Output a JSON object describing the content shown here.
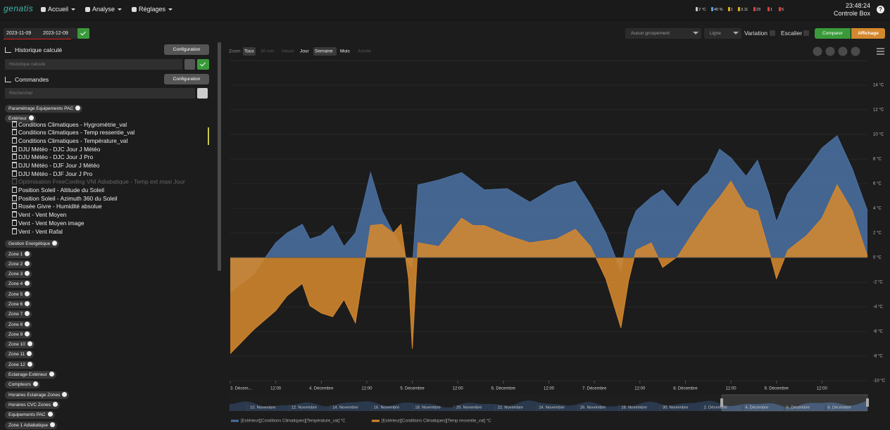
{
  "navbar": {
    "logo": "genatis",
    "menu": [
      "Accueil",
      "Analyse",
      "Réglages"
    ],
    "status": [
      "2 °C",
      "40 %",
      "1",
      "3.11",
      "23",
      "1",
      "5"
    ],
    "time": "23:48:24",
    "box": "Controle Box",
    "help": "?"
  },
  "toolbar": {
    "date_from": "2023-11-09",
    "date_to": "2023-12-09",
    "grouping": "Aucun groupement",
    "mode": "Ligne",
    "variation": "Variation",
    "stairs": "Escalier",
    "compare": "Comparer",
    "display": "Affichage"
  },
  "sidebar": {
    "history": {
      "title": "Historique calculé",
      "button": "Configuration",
      "placeholder": "Historique calculé"
    },
    "commands": {
      "title": "Commandes",
      "button": "Configuration",
      "placeholder": "Rechercher"
    },
    "tree": [
      {
        "label": "Paramétrage Equipements PAC"
      },
      {
        "label": "Extérieur",
        "items": [
          {
            "text": "Conditions Climatiques - Hygrométrie_val",
            "enabled": true
          },
          {
            "text": "Conditions Climatiques - Temp ressentie_val",
            "enabled": true
          },
          {
            "text": "Conditions Climatiques - Température_val",
            "enabled": true
          },
          {
            "text": "DJU Météo - DJC Jour J Météo",
            "enabled": true
          },
          {
            "text": "DJU Météo - DJC Jour J Pro",
            "enabled": true
          },
          {
            "text": "DJU Météo - DJF Jour J Météo",
            "enabled": true
          },
          {
            "text": "DJU Météo - DJF Jour J Pro",
            "enabled": true
          },
          {
            "text": "Optimisation FreeCooling VNI Adiabatique - Temp ext maxi Jour",
            "enabled": false
          },
          {
            "text": "Position Soleil - Altitude du Soleil",
            "enabled": true
          },
          {
            "text": "Position Soleil - Azimuth 360 du Soleil",
            "enabled": true
          },
          {
            "text": "Rosée Givre - Humidité absolue",
            "enabled": true
          },
          {
            "text": "Vent - Vent Moyen",
            "enabled": true
          },
          {
            "text": "Vent - Vent Moyen image",
            "enabled": true
          },
          {
            "text": "Vent - Vent Rafal",
            "enabled": true
          }
        ]
      },
      {
        "label": "Gestion Energétique"
      },
      {
        "label": "Zone 1"
      },
      {
        "label": "Zone 2"
      },
      {
        "label": "Zone 3"
      },
      {
        "label": "Zone 4"
      },
      {
        "label": "Zone 5"
      },
      {
        "label": "Zone 6"
      },
      {
        "label": "Zone 7"
      },
      {
        "label": "Zone 8"
      },
      {
        "label": "Zone 9"
      },
      {
        "label": "Zone 10"
      },
      {
        "label": "Zone 11"
      },
      {
        "label": "Zone 12"
      },
      {
        "label": "Eclairage Extérieur"
      },
      {
        "label": "Compteurs"
      },
      {
        "label": "Horaires Eclairage Zones"
      },
      {
        "label": "Horaires CVC Zones"
      },
      {
        "label": "Equipements PAC"
      },
      {
        "label": "Zone 1 Adiabatique"
      }
    ]
  },
  "zoom": {
    "label": "Zoom",
    "buttons": [
      {
        "text": "Tous",
        "state": "selected"
      },
      {
        "text": "30 min",
        "state": "disabled"
      },
      {
        "text": "Heure",
        "state": "disabled"
      },
      {
        "text": "Jour",
        "state": "enabled"
      },
      {
        "text": "Semaine",
        "state": "selected"
      },
      {
        "text": "Mois",
        "state": "enabled"
      },
      {
        "text": "Année",
        "state": "disabled"
      }
    ]
  },
  "navigator": {
    "labels": [
      "10. Novembre",
      "12. Novembre",
      "14. Novembre",
      "16. Novembre",
      "18. Novembre",
      "20. Novembre",
      "22. Novembre",
      "24. Novembre",
      "26. Novembre",
      "28. Novembre",
      "30. Novembre",
      "2. Décembre",
      "4. Décembre",
      "6. Décembre",
      "8. Décembre"
    ]
  },
  "chart_data": {
    "type": "area",
    "x": [
      "2023-12-03T00:00",
      "2023-12-03T06:00",
      "2023-12-03T12:00",
      "2023-12-03T15:00",
      "2023-12-03T19:00",
      "2023-12-03T21:00",
      "2023-12-04T00:00",
      "2023-12-04T03:00",
      "2023-12-04T06:00",
      "2023-12-04T09:00",
      "2023-12-04T11:00",
      "2023-12-04T13:00",
      "2023-12-04T16:00",
      "2023-12-04T19:00",
      "2023-12-04T21:00",
      "2023-12-04T23:00",
      "2023-12-05T00:00",
      "2023-12-05T01:30",
      "2023-12-05T07:00",
      "2023-12-05T13:00",
      "2023-12-05T16:00",
      "2023-12-05T19:00",
      "2023-12-06T01:00",
      "2023-12-06T07:00",
      "2023-12-06T14:00",
      "2023-12-06T19:00",
      "2023-12-06T23:00",
      "2023-12-07T03:00",
      "2023-12-07T07:00",
      "2023-12-07T09:00",
      "2023-12-07T11:00",
      "2023-12-07T15:00",
      "2023-12-07T18:00",
      "2023-12-07T22:00",
      "2023-12-08T02:00",
      "2023-12-08T06:00",
      "2023-12-08T09:00",
      "2023-12-08T12:00",
      "2023-12-08T16:00",
      "2023-12-08T19:00",
      "2023-12-08T22:00",
      "2023-12-09T00:00",
      "2023-12-09T03:00",
      "2023-12-09T08:00",
      "2023-12-09T12:00",
      "2023-12-09T16:00",
      "2023-12-09T20:00",
      "2023-12-10T00:00"
    ],
    "series": [
      {
        "name": "[Extérieur][Conditions Climatiques][Température_val] °C",
        "color": "#4a6fa0",
        "values": [
          -2.8,
          -1.4,
          1.2,
          2.0,
          2.7,
          1.5,
          1.8,
          2.6,
          0.9,
          2.0,
          4.3,
          6.9,
          3.8,
          2.0,
          1.0,
          -0.5,
          -0.8,
          5.9,
          6.3,
          6.9,
          6.2,
          5.5,
          5.6,
          4.5,
          5.8,
          6.2,
          4.3,
          2.0,
          -1.1,
          2.3,
          3.8,
          4.9,
          5.5,
          4.1,
          5.8,
          6.9,
          8.8,
          8.1,
          6.6,
          7.9,
          5.2,
          2.9,
          5.2,
          7.2,
          8.9,
          9.9,
          7.2,
          3.8
        ]
      },
      {
        "name": "[Extérieur][Conditions Climatiques][Temp ressentie_val] °C",
        "color": "#d4882e",
        "values": [
          -7.8,
          -5.9,
          -4.3,
          -3.1,
          -2.1,
          -3.9,
          -4.5,
          -4.8,
          -3.4,
          -5.3,
          -1.4,
          2.6,
          2.7,
          2.0,
          2.7,
          -1.7,
          -7.4,
          1.2,
          0.9,
          3.2,
          2.6,
          2.6,
          1.8,
          1.2,
          1.5,
          2.3,
          0.9,
          -1.7,
          -5.7,
          -1.9,
          0.6,
          1.2,
          -0.8,
          0.1,
          2.0,
          3.8,
          4.9,
          6.2,
          4.1,
          3.8,
          0.6,
          -1.7,
          0.6,
          1.8,
          3.2,
          5.9,
          3.8,
          0.1
        ]
      }
    ],
    "xlim": [
      "2023-12-03T00:00",
      "2023-12-10T00:00"
    ],
    "xticks": [
      {
        "value": "2023-12-03T00:00",
        "label": "3. Décem..."
      },
      {
        "value": "2023-12-03T12:00",
        "label": "12:00"
      },
      {
        "value": "2023-12-04T00:00",
        "label": "4. Décembre"
      },
      {
        "value": "2023-12-04T12:00",
        "label": "12:00"
      },
      {
        "value": "2023-12-05T00:00",
        "label": "5. Décembre"
      },
      {
        "value": "2023-12-05T12:00",
        "label": "12:00"
      },
      {
        "value": "2023-12-06T00:00",
        "label": "6. Décembre"
      },
      {
        "value": "2023-12-06T12:00",
        "label": "12:00"
      },
      {
        "value": "2023-12-07T00:00",
        "label": "7. Décembre"
      },
      {
        "value": "2023-12-07T12:00",
        "label": "12:00"
      },
      {
        "value": "2023-12-08T00:00",
        "label": "8. Décembre"
      },
      {
        "value": "2023-12-08T12:00",
        "label": "12:00"
      },
      {
        "value": "2023-12-09T00:00",
        "label": "9. Décembre"
      },
      {
        "value": "2023-12-09T12:00",
        "label": "12:00"
      }
    ],
    "ylim": [
      -10,
      16
    ],
    "yticks": [
      {
        "value": -10,
        "label": "-10 °C"
      },
      {
        "value": -8,
        "label": "-8 °C"
      },
      {
        "value": -6,
        "label": "-6 °C"
      },
      {
        "value": -4,
        "label": "-4 °C"
      },
      {
        "value": -2,
        "label": "-2 °C"
      },
      {
        "value": 0,
        "label": "0 °C"
      },
      {
        "value": 2,
        "label": "2 °C"
      },
      {
        "value": 4,
        "label": "4 °C"
      },
      {
        "value": 6,
        "label": "6 °C"
      },
      {
        "value": 8,
        "label": "8 °C"
      },
      {
        "value": 10,
        "label": "10 °C"
      },
      {
        "value": 12,
        "label": "12 °C"
      },
      {
        "value": 14,
        "label": "14 °C"
      }
    ],
    "grid": true
  }
}
